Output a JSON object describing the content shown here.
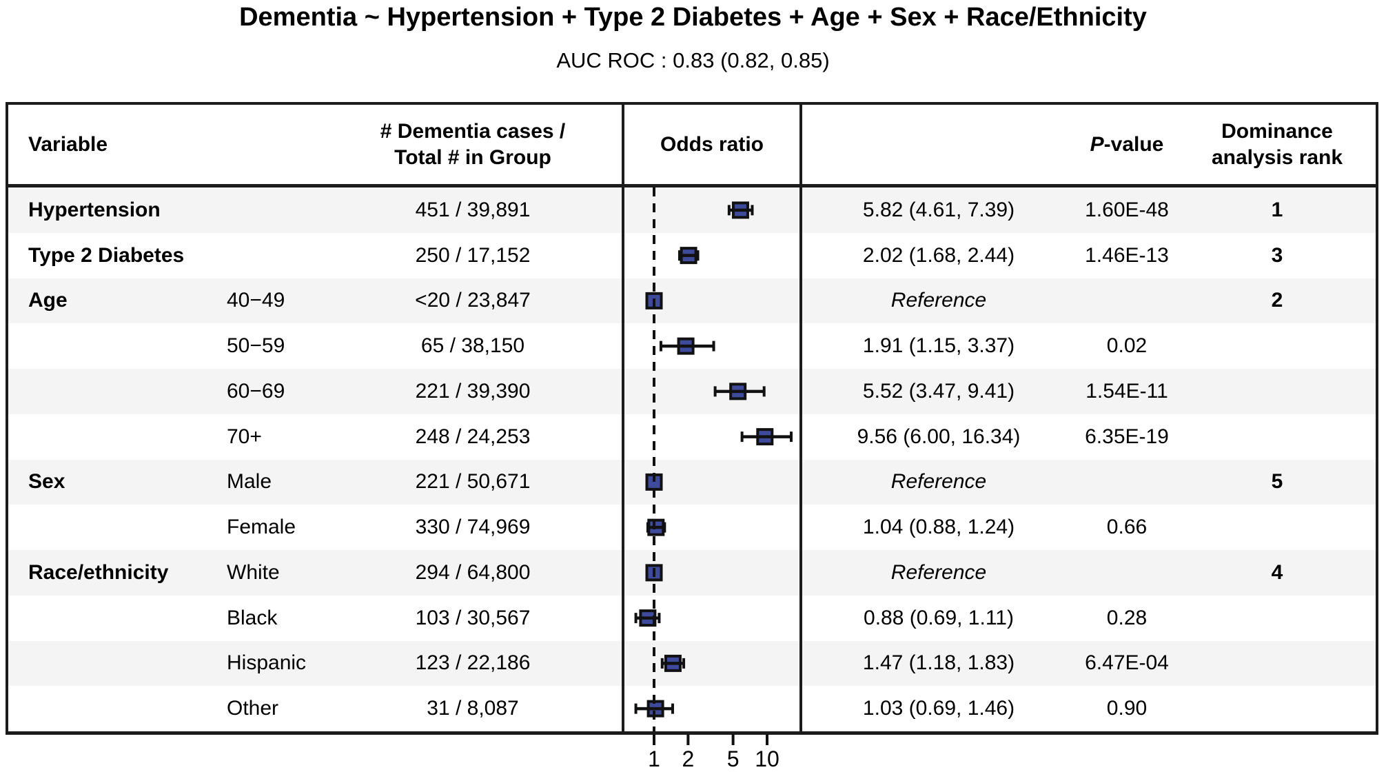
{
  "title": "Dementia ~ Hypertension + Type 2 Diabetes + Age + Sex + Race/Ethnicity",
  "subtitle": "AUC ROC : 0.83 (0.82, 0.85)",
  "table": {
    "headers": {
      "variable": "Variable",
      "counts_line1": "# Dementia cases /",
      "counts_line2": "Total # in Group",
      "odds_ratio": "Odds ratio",
      "pvalue_italic": "P",
      "pvalue_rest": "-value",
      "rank_line1": "Dominance",
      "rank_line2": "analysis rank"
    },
    "rows": [
      {
        "variable": "Hypertension",
        "level": "",
        "counts": "451 / 39,891",
        "or_text": "5.82 (4.61, 7.39)",
        "pvalue": "1.60E-48",
        "rank": "1"
      },
      {
        "variable": "Type 2 Diabetes",
        "level": "",
        "counts": "250 / 17,152",
        "or_text": "2.02 (1.68, 2.44)",
        "pvalue": "1.46E-13",
        "rank": "3"
      },
      {
        "variable": "Age",
        "level": "40−49",
        "counts": "<20 / 23,847",
        "or_text": "Reference",
        "pvalue": "",
        "rank": "2"
      },
      {
        "variable": "",
        "level": "50−59",
        "counts": "65 / 38,150",
        "or_text": "1.91 (1.15, 3.37)",
        "pvalue": "0.02",
        "rank": ""
      },
      {
        "variable": "",
        "level": "60−69",
        "counts": "221 / 39,390",
        "or_text": "5.52 (3.47, 9.41)",
        "pvalue": "1.54E-11",
        "rank": ""
      },
      {
        "variable": "",
        "level": "70+",
        "counts": "248 / 24,253",
        "or_text": "9.56 (6.00, 16.34)",
        "pvalue": "6.35E-19",
        "rank": ""
      },
      {
        "variable": "Sex",
        "level": "Male",
        "counts": "221 / 50,671",
        "or_text": "Reference",
        "pvalue": "",
        "rank": "5"
      },
      {
        "variable": "",
        "level": "Female",
        "counts": "330 / 74,969",
        "or_text": "1.04 (0.88, 1.24)",
        "pvalue": "0.66",
        "rank": ""
      },
      {
        "variable": "Race/ethnicity",
        "level": "White",
        "counts": "294 / 64,800",
        "or_text": "Reference",
        "pvalue": "",
        "rank": "4"
      },
      {
        "variable": "",
        "level": "Black",
        "counts": "103 / 30,567",
        "or_text": "0.88 (0.69, 1.11)",
        "pvalue": "0.28",
        "rank": ""
      },
      {
        "variable": "",
        "level": "Hispanic",
        "counts": "123 / 22,186",
        "or_text": "1.47 (1.18, 1.83)",
        "pvalue": "6.47E-04",
        "rank": ""
      },
      {
        "variable": "",
        "level": "Other",
        "counts": "31 / 8,087",
        "or_text": "1.03 (0.69, 1.46)",
        "pvalue": "0.90",
        "rank": ""
      }
    ]
  },
  "chart_data": {
    "type": "forest",
    "x_scale": "log10",
    "x_ticks": [
      1,
      2,
      5,
      10
    ],
    "reference_line": 1,
    "xlabel": "Odds ratio",
    "rows": [
      {
        "label": "Hypertension",
        "or": 5.82,
        "ci_low": 4.61,
        "ci_high": 7.39,
        "reference": false
      },
      {
        "label": "Type 2 Diabetes",
        "or": 2.02,
        "ci_low": 1.68,
        "ci_high": 2.44,
        "reference": false
      },
      {
        "label": "Age 40−49",
        "or": 1.0,
        "ci_low": null,
        "ci_high": null,
        "reference": true
      },
      {
        "label": "Age 50−59",
        "or": 1.91,
        "ci_low": 1.15,
        "ci_high": 3.37,
        "reference": false
      },
      {
        "label": "Age 60−69",
        "or": 5.52,
        "ci_low": 3.47,
        "ci_high": 9.41,
        "reference": false
      },
      {
        "label": "Age 70+",
        "or": 9.56,
        "ci_low": 6.0,
        "ci_high": 16.34,
        "reference": false
      },
      {
        "label": "Sex Male",
        "or": 1.0,
        "ci_low": null,
        "ci_high": null,
        "reference": true
      },
      {
        "label": "Sex Female",
        "or": 1.04,
        "ci_low": 0.88,
        "ci_high": 1.24,
        "reference": false
      },
      {
        "label": "White",
        "or": 1.0,
        "ci_low": null,
        "ci_high": null,
        "reference": true
      },
      {
        "label": "Black",
        "or": 0.88,
        "ci_low": 0.69,
        "ci_high": 1.11,
        "reference": false
      },
      {
        "label": "Hispanic",
        "or": 1.47,
        "ci_low": 1.18,
        "ci_high": 1.83,
        "reference": false
      },
      {
        "label": "Other",
        "or": 1.03,
        "ci_low": 0.69,
        "ci_high": 1.46,
        "reference": false
      }
    ]
  },
  "colors": {
    "marker_fill": "#3e4a9b",
    "line": "#111111",
    "border": "#1c1c1c",
    "stripe": "#f4f4f4"
  }
}
